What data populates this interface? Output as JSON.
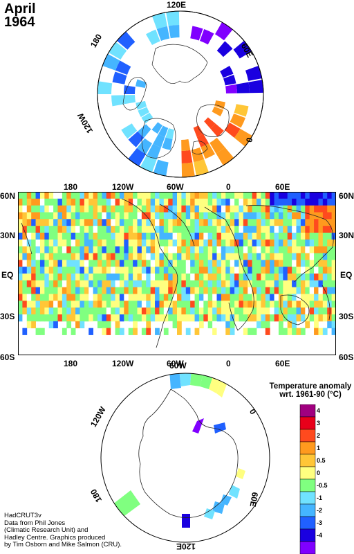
{
  "title": {
    "line1": "April",
    "line2": "1964"
  },
  "north_polar": {
    "labels": {
      "top": "120E",
      "left": "180",
      "right": "60E",
      "lower_left": "120W",
      "lower_right": "0"
    }
  },
  "main_map": {
    "lat_labels": [
      "60N",
      "30N",
      "EQ",
      "30S",
      "60S"
    ],
    "lon_labels": [
      "180",
      "120W",
      "60W",
      "0",
      "60E"
    ]
  },
  "south_polar": {
    "labels": {
      "top": "60W",
      "upper_left": "120W",
      "upper_right": "0",
      "lower_left": "180",
      "lower_right": "60E",
      "bottom": "120E"
    }
  },
  "legend": {
    "title_line1": "Temperature anomaly",
    "title_line2": "wrt. 1961-90  (°C)",
    "bins": [
      {
        "label": "4",
        "color": "#a0007f"
      },
      {
        "label": "3",
        "color": "#e8001a"
      },
      {
        "label": "2",
        "color": "#ff4a1e"
      },
      {
        "label": "1",
        "color": "#ff9a1e"
      },
      {
        "label": "0.5",
        "color": "#ffc637"
      },
      {
        "label": "0",
        "color": "#ffff80"
      },
      {
        "label": "-0.5",
        "color": "#80ff80"
      },
      {
        "label": "-1",
        "color": "#70e2ff"
      },
      {
        "label": "-2",
        "color": "#45b5ff"
      },
      {
        "label": "-3",
        "color": "#2060ff"
      },
      {
        "label": "-4",
        "color": "#1a00e0"
      },
      {
        "label": "",
        "color": "#8000ff"
      }
    ]
  },
  "credit": {
    "line1": "HadCRUT3v",
    "line2": "Data from Phil Jones",
    "line3": "(Climatic Research Unit) and",
    "line4": "Hadley Centre.  Graphics produced",
    "line5": "by Tim Osborn and Mike Salmon (CRU)."
  }
}
